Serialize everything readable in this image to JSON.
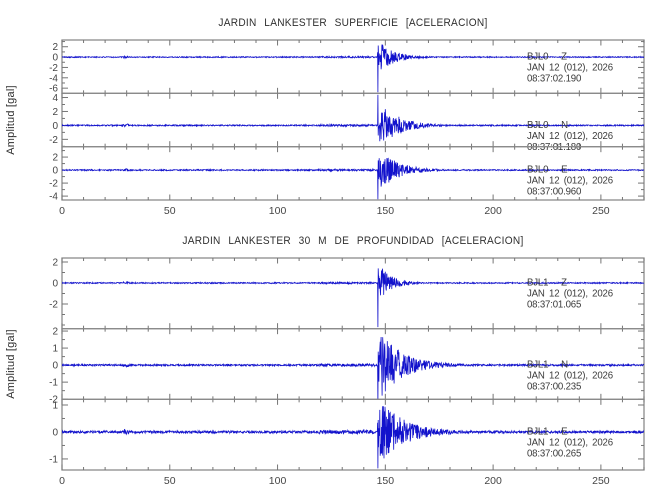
{
  "colors": {
    "background": "#ffffff",
    "trace": "#1212cc",
    "frame": "#8b8b8b",
    "tick": "#757575",
    "title_text": "#2f2f2f",
    "label_text": "#3a3a3a",
    "tick_text": "#454545"
  },
  "chart_data": {
    "type": "line",
    "subtype": "seismogram-multipanel",
    "x_unit": "seconds",
    "xlim": [
      0,
      270
    ],
    "xticks": [
      0,
      50,
      100,
      150,
      200,
      250
    ],
    "x_minor_step": 10,
    "grid": false,
    "legend": false,
    "event": {
      "onset": 146.3
    },
    "noise_bursts": [
      {
        "t": 28.5,
        "dur": 2.5,
        "mult": 2.4
      },
      {
        "t": 119,
        "dur": 26,
        "mult": 1.55
      }
    ],
    "panels": [
      {
        "title": "JARDIN LANKESTER SUPERFICIE [ACELERACION]",
        "ylabel": "Amplitud [gal]",
        "traces": [
          {
            "station": "BJL0",
            "component": "Z",
            "date": "JAN 12 (012), 2026",
            "time": "08:37:02.190",
            "ylim": [
              -7.0,
              3.3
            ],
            "yticks": [
              2,
              0,
              -2,
              -4,
              -6
            ],
            "y_minor_step": 1,
            "noise": 0.1,
            "peak": 2.7,
            "spike": -6.8,
            "tau": 7,
            "seed": 101
          },
          {
            "station": "BJL0",
            "component": "N",
            "date": "JAN 12 (012), 2026",
            "time": "08:37:01.180",
            "ylim": [
              -3.05,
              4.6
            ],
            "yticks": [
              4,
              2,
              0,
              -2
            ],
            "y_minor_step": 1,
            "noise": 0.09,
            "peak": 3.1,
            "spike": 4.4,
            "tau": 9,
            "seed": 202
          },
          {
            "station": "BJL0",
            "component": "E",
            "date": "JAN 12 (012), 2026",
            "time": "08:37:00.960",
            "ylim": [
              -4.6,
              3.6
            ],
            "yticks": [
              2,
              0,
              -2,
              -4
            ],
            "y_minor_step": 1,
            "noise": 0.09,
            "peak": 2.9,
            "spike": -4.5,
            "tau": 9,
            "seed": 303
          }
        ]
      },
      {
        "title": "JARDIN LANKESTER 30 M DE PROFUNDIDAD [ACELERACION]",
        "ylabel": "Amplitud [gal]",
        "traces": [
          {
            "station": "BJL1",
            "component": "Z",
            "date": "JAN 12 (012), 2026",
            "time": "08:37:01.065",
            "ylim": [
              -4.35,
              2.38
            ],
            "yticks": [
              2,
              0,
              -2
            ],
            "y_minor_step": 1,
            "noise": 0.055,
            "peak": 1.5,
            "spike": -4.2,
            "tau": 6,
            "seed": 404
          },
          {
            "station": "BJL1",
            "component": "N",
            "date": "JAN 12 (012), 2026",
            "time": "08:37:00.235",
            "ylim": [
              -2.01,
              2.14
            ],
            "yticks": [
              2,
              1,
              0,
              -1,
              -2
            ],
            "y_minor_step": 0.5,
            "noise": 0.05,
            "peak": 1.9,
            "spike": -2.4,
            "tau": 11,
            "seed": 505
          },
          {
            "station": "BJL1",
            "component": "E",
            "date": "JAN 12 (012), 2026",
            "time": "08:37:00.265",
            "ylim": [
              -1.41,
              1.21
            ],
            "yticks": [
              1,
              0,
              -1
            ],
            "y_minor_step": 0.5,
            "noise": 0.045,
            "peak": 1.15,
            "spike": -1.35,
            "tau": 12,
            "seed": 606
          }
        ]
      }
    ]
  }
}
